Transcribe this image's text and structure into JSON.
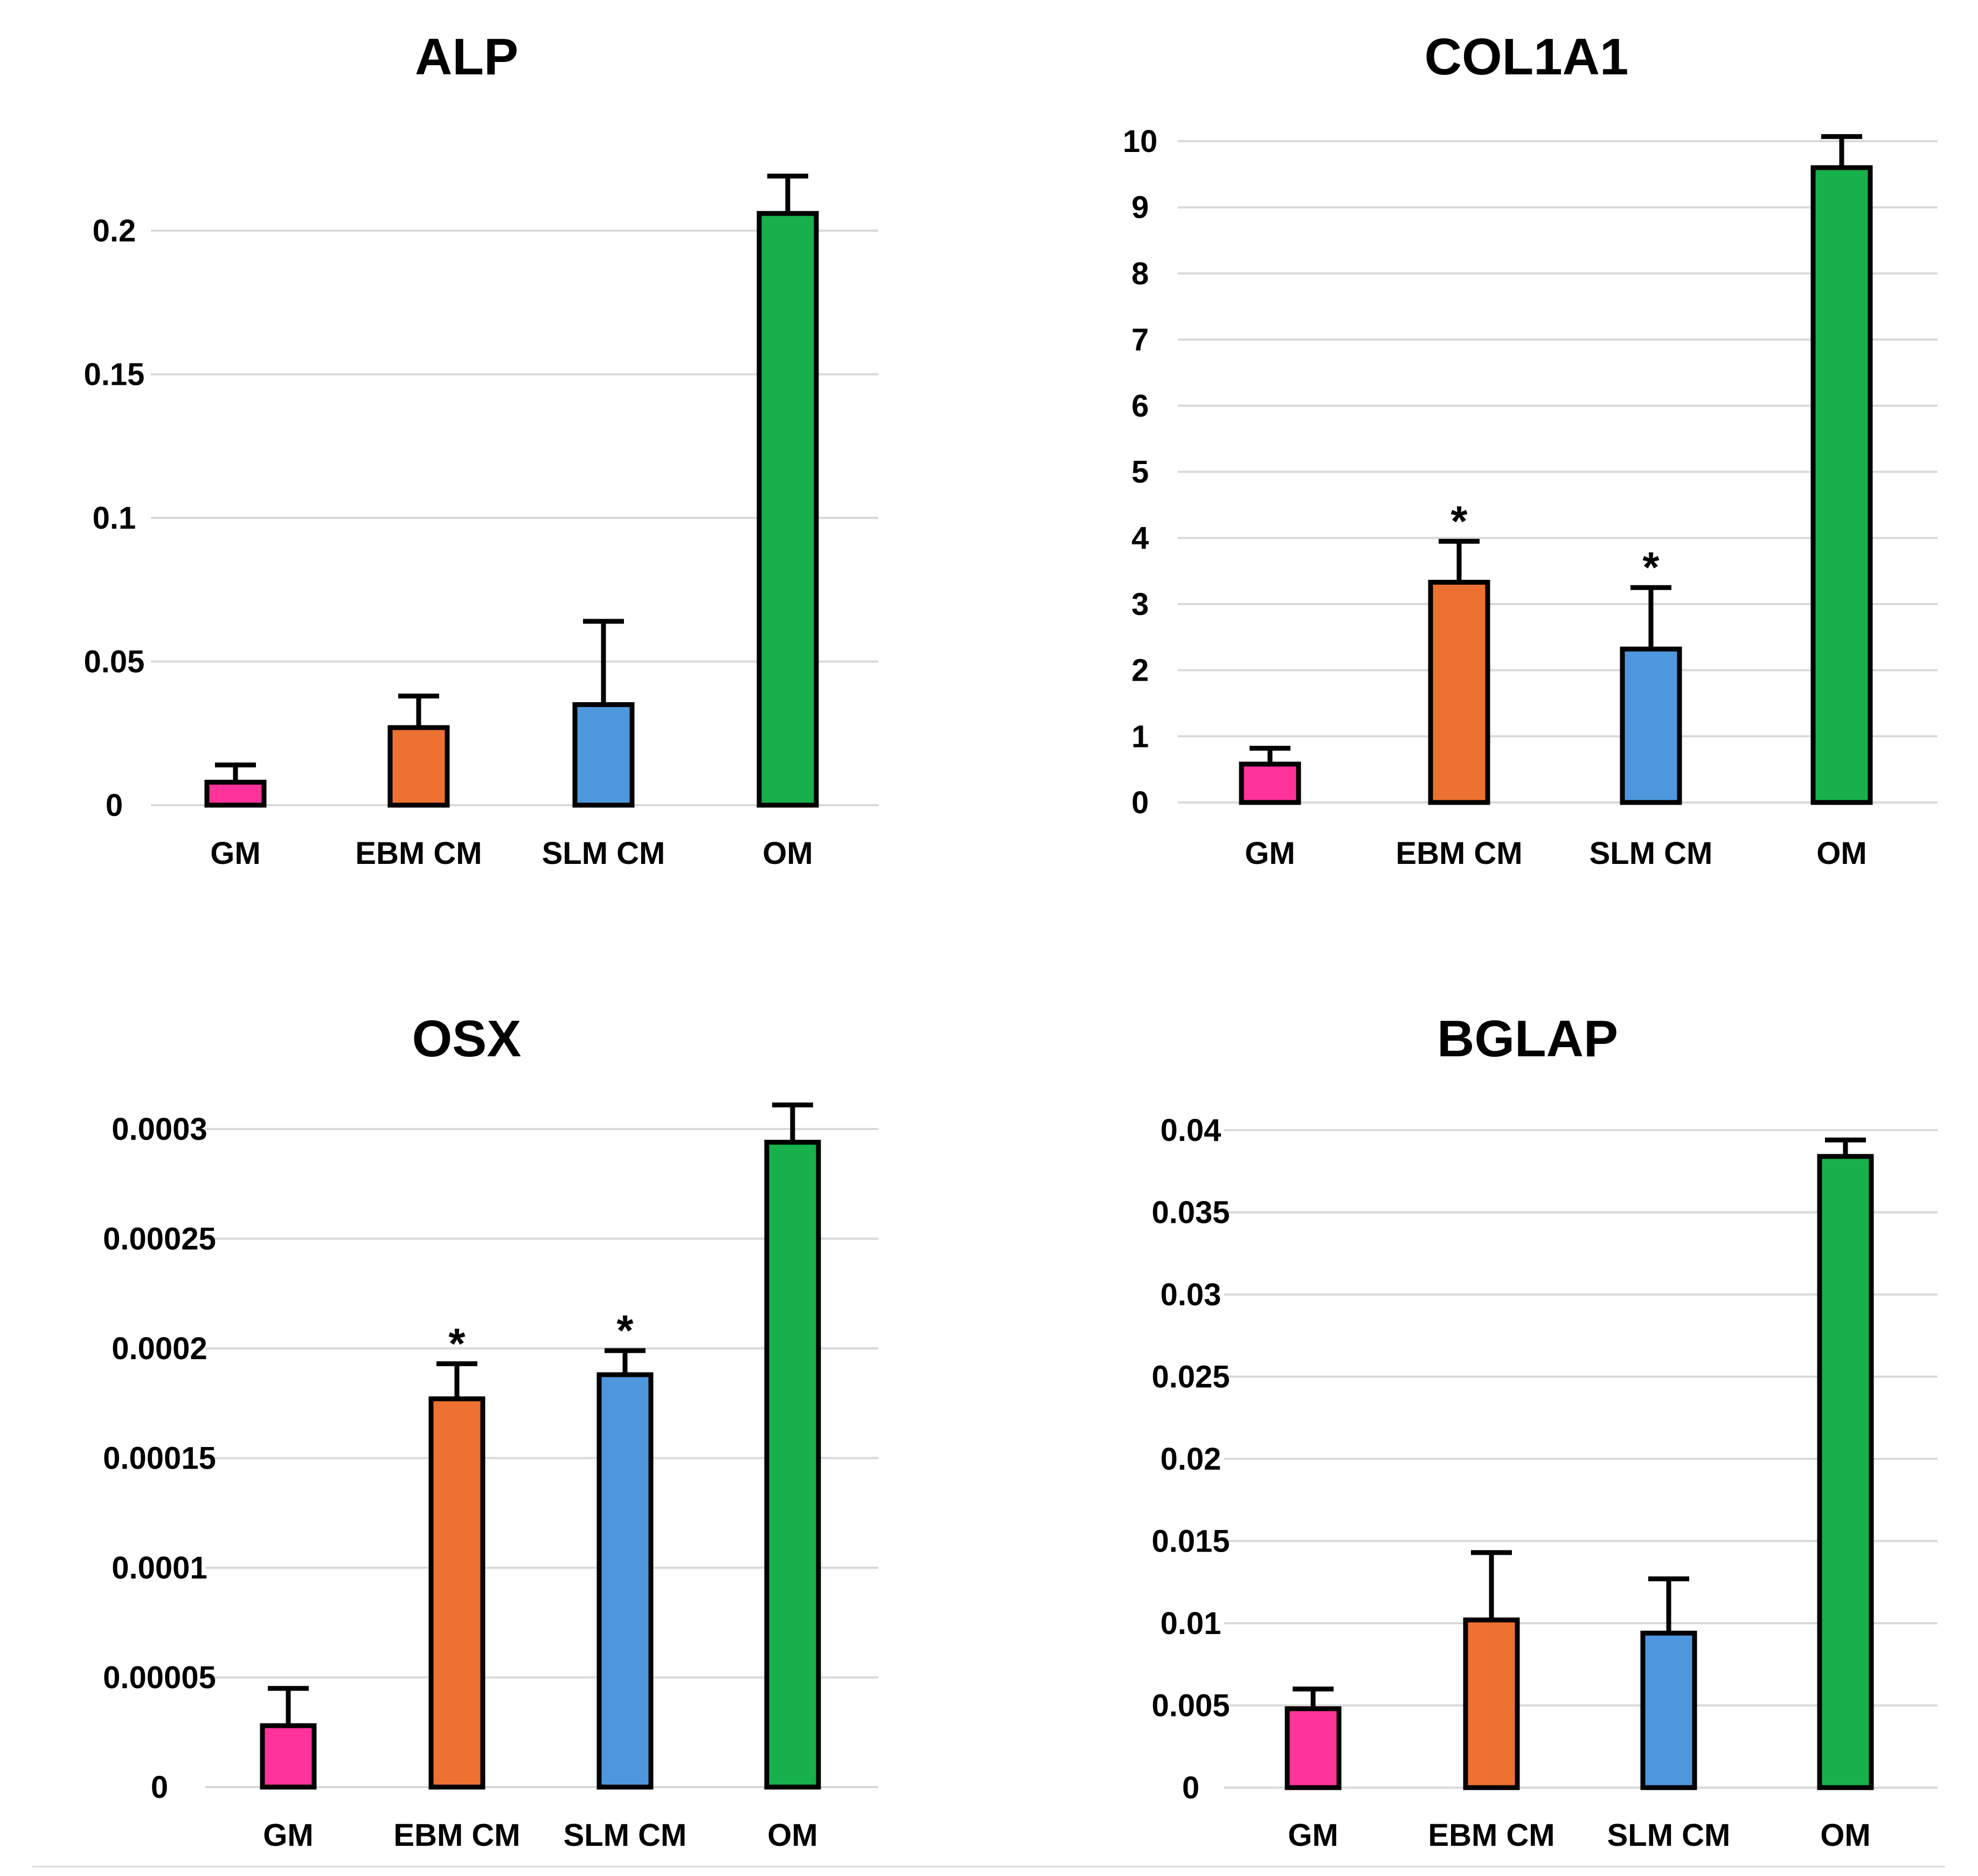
{
  "chart_data": [
    {
      "type": "bar",
      "title": "ALP",
      "categories": [
        "GM",
        "EBM CM",
        "SLM CM",
        "OM"
      ],
      "values": [
        0.008,
        0.027,
        0.035,
        0.206
      ],
      "error_upper": [
        0.014,
        0.038,
        0.064,
        0.219
      ],
      "significance": [
        "",
        "",
        "",
        ""
      ],
      "colors": [
        "#ff3399",
        "#ed7130",
        "#4f97dc",
        "#17b04d"
      ],
      "ylim": [
        0,
        0.2
      ],
      "yticks": [
        "0",
        "0.05",
        "0.1",
        "0.15",
        "0.2"
      ],
      "ytick_values": [
        0,
        0.05,
        0.1,
        0.15,
        0.2
      ],
      "xlabel": "",
      "ylabel": "",
      "grid": true
    },
    {
      "type": "bar",
      "title": "COL1A1",
      "categories": [
        "GM",
        "EBM CM",
        "SLM CM",
        "OM"
      ],
      "values": [
        0.58,
        3.33,
        2.32,
        9.6
      ],
      "error_upper": [
        0.82,
        3.95,
        3.25,
        10.07
      ],
      "significance": [
        "",
        "*",
        "*",
        ""
      ],
      "colors": [
        "#ff3399",
        "#ed7130",
        "#4f97dc",
        "#17b04d"
      ],
      "ylim": [
        0,
        10
      ],
      "yticks": [
        "0",
        "1",
        "2",
        "3",
        "4",
        "5",
        "6",
        "7",
        "8",
        "9",
        "10"
      ],
      "ytick_values": [
        0,
        1,
        2,
        3,
        4,
        5,
        6,
        7,
        8,
        9,
        10
      ],
      "xlabel": "",
      "ylabel": "",
      "grid": true
    },
    {
      "type": "bar",
      "title": "OSX",
      "categories": [
        "GM",
        "EBM CM",
        "SLM CM",
        "OM"
      ],
      "values": [
        2.8e-05,
        0.000177,
        0.000188,
        0.000294
      ],
      "error_upper": [
        4.5e-05,
        0.000193,
        0.000199,
        0.000311
      ],
      "significance": [
        "",
        "*",
        "*",
        ""
      ],
      "colors": [
        "#ff3399",
        "#ed7130",
        "#4f97dc",
        "#17b04d"
      ],
      "ylim": [
        0,
        0.0003
      ],
      "yticks": [
        "0",
        "0.00005",
        "0.0001",
        "0.00015",
        "0.0002",
        "0.00025",
        "0.0003"
      ],
      "ytick_values": [
        0,
        5e-05,
        0.0001,
        0.00015,
        0.0002,
        0.00025,
        0.0003
      ],
      "xlabel": "",
      "ylabel": "",
      "grid": true
    },
    {
      "type": "bar",
      "title": "BGLAP",
      "categories": [
        "GM",
        "EBM CM",
        "SLM CM",
        "OM"
      ],
      "values": [
        0.0048,
        0.0102,
        0.0094,
        0.0384
      ],
      "error_upper": [
        0.006,
        0.0143,
        0.0127,
        0.0394
      ],
      "significance": [
        "",
        "",
        "",
        ""
      ],
      "colors": [
        "#ff3399",
        "#ed7130",
        "#4f97dc",
        "#17b04d"
      ],
      "ylim": [
        0,
        0.04
      ],
      "yticks": [
        "0",
        "0.005",
        "0.01",
        "0.015",
        "0.02",
        "0.025",
        "0.03",
        "0.035",
        "0.04"
      ],
      "ytick_values": [
        0,
        0.005,
        0.01,
        0.015,
        0.02,
        0.025,
        0.03,
        0.035,
        0.04
      ],
      "xlabel": "",
      "ylabel": "",
      "grid": true
    }
  ]
}
